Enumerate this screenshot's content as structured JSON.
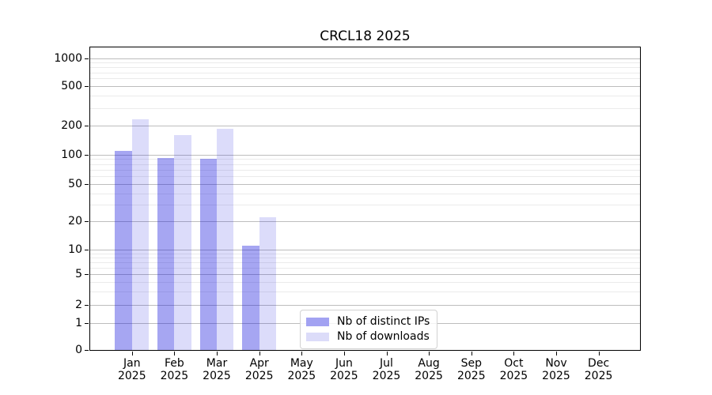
{
  "title": "CRCL18 2025",
  "chart_data": {
    "type": "bar",
    "title": "CRCL18 2025",
    "categories": [
      "Jan 2025",
      "Feb 2025",
      "Mar 2025",
      "Apr 2025",
      "May 2025",
      "Jun 2025",
      "Jul 2025",
      "Aug 2025",
      "Sep 2025",
      "Oct 2025",
      "Nov 2025",
      "Dec 2025"
    ],
    "series": [
      {
        "name": "Nb of distinct IPs",
        "fill": "rgba(20,20,220,0.38)",
        "swatch": "#a2a2f2",
        "values": [
          108,
          93,
          90,
          11,
          0,
          0,
          0,
          0,
          0,
          0,
          0,
          0
        ]
      },
      {
        "name": "Nb of downloads",
        "fill": "rgba(20,20,220,0.15)",
        "swatch": "#dcdcf9",
        "values": [
          230,
          160,
          185,
          22,
          0,
          0,
          0,
          0,
          0,
          0,
          0,
          0
        ]
      }
    ],
    "xlabel": "",
    "ylabel": "",
    "yscale": "symlog",
    "yticks": [
      0,
      1,
      2,
      5,
      10,
      20,
      50,
      100,
      200,
      500,
      1000
    ],
    "ylim": [
      0,
      1350
    ],
    "grid": "major-and-minor",
    "legend_position": "lower center"
  },
  "colors": {
    "spine": "#000000",
    "grid_major": "#bdbdbd",
    "grid_minor": "#ebebeb",
    "text": "#000000",
    "legend_border": "#d2d2d2",
    "background": "#ffffff"
  }
}
